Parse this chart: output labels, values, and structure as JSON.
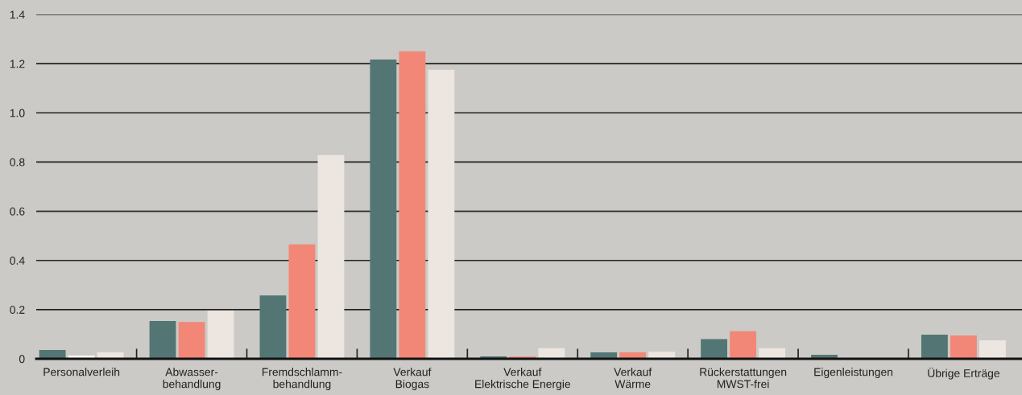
{
  "chart_data": {
    "type": "bar",
    "categories": [
      "Personalverleih",
      "Abwasser-\nbehandlung",
      "Fremdschlamm-\nbehandlung",
      "Verkauf\nBiogas",
      "Verkauf\nElektrische Energie",
      "Verkauf\nWärme",
      "Rückerstattungen\nMWST-frei",
      "Eigenleistungen",
      "Übrige Erträge"
    ],
    "series": [
      {
        "color": "#537674",
        "values": [
          0.036,
          0.154,
          0.258,
          1.217,
          0.01,
          0.026,
          0.08,
          0.016,
          0.098
        ]
      },
      {
        "color": "#f28777",
        "colors": [
          "#ffffff",
          null,
          null,
          null,
          null,
          null,
          null,
          null,
          null
        ],
        "values": [
          0.013,
          0.15,
          0.465,
          1.25,
          0.009,
          0.026,
          0.112,
          null,
          0.095
        ]
      },
      {
        "color": "#ede5df",
        "values": [
          0.026,
          0.196,
          0.828,
          1.175,
          0.043,
          0.029,
          0.043,
          0,
          0.075
        ]
      }
    ],
    "ylim": [
      0,
      1.4
    ],
    "yticks": [
      0,
      0.2,
      0.4,
      0.6,
      0.8,
      {
        "value": 1.0,
        "label": "1.0"
      },
      1.2,
      1.4
    ],
    "grid": "y",
    "legend": false
  }
}
